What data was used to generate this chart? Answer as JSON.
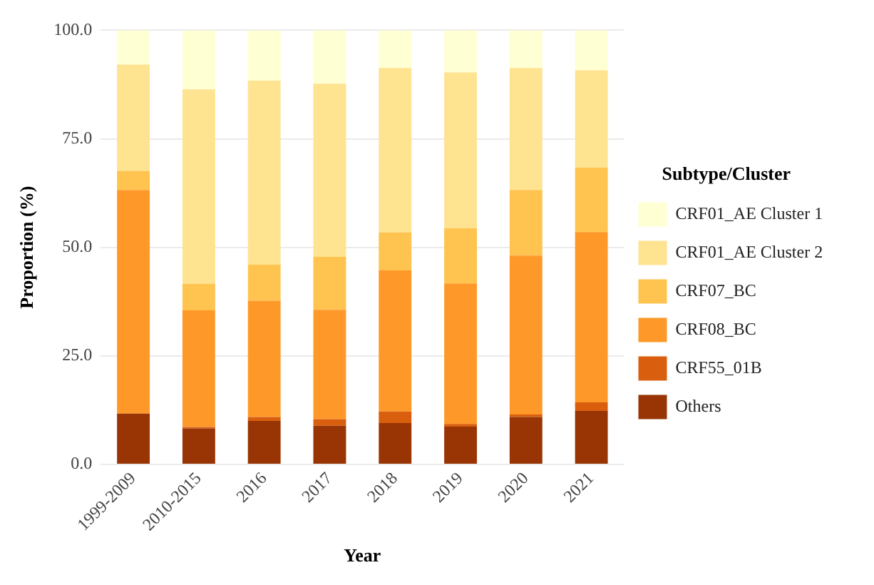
{
  "chart_data": {
    "type": "bar",
    "stacked": true,
    "xlabel": "Year",
    "ylabel": "Proportion (%)",
    "legend_title": "Subtype/Cluster",
    "legend": "right",
    "grid": "y",
    "categories": [
      "1999-2009",
      "2010-2015",
      "2016",
      "2017",
      "2018",
      "2019",
      "2020",
      "2021"
    ],
    "ylim": [
      0,
      100
    ],
    "yticks": [
      {
        "value": 0,
        "label": "0.0"
      },
      {
        "value": 25,
        "label": "25.0"
      },
      {
        "value": 50,
        "label": "50.0"
      },
      {
        "value": 75,
        "label": "75.0"
      },
      {
        "value": 100,
        "label": "100.0"
      }
    ],
    "series": [
      {
        "name": "Others",
        "color": "#993404",
        "values": [
          11.7,
          8.3,
          10.0,
          8.9,
          9.5,
          8.7,
          10.9,
          12.3
        ]
      },
      {
        "name": "CRF55_01B",
        "color": "#d95f0e",
        "values": [
          0,
          0.3,
          0.9,
          1.5,
          2.7,
          0.6,
          0.6,
          2.0
        ]
      },
      {
        "name": "CRF08_BC",
        "color": "#fe9929",
        "values": [
          51.5,
          26.9,
          26.8,
          25.2,
          32.5,
          32.4,
          36.6,
          39.2
        ]
      },
      {
        "name": "CRF07_BC",
        "color": "#fec44f",
        "values": [
          4.4,
          6.1,
          8.3,
          12.2,
          8.7,
          12.7,
          15.1,
          14.9
        ]
      },
      {
        "name": "CRF01_AE Cluster 2",
        "color": "#fee391",
        "values": [
          24.5,
          44.8,
          42.4,
          39.9,
          37.9,
          35.9,
          28.1,
          22.4
        ]
      },
      {
        "name": "CRF01_AE Cluster 1",
        "color": "#ffffd4",
        "values": [
          7.9,
          13.6,
          11.6,
          12.3,
          8.7,
          9.7,
          8.7,
          9.2
        ]
      }
    ]
  }
}
